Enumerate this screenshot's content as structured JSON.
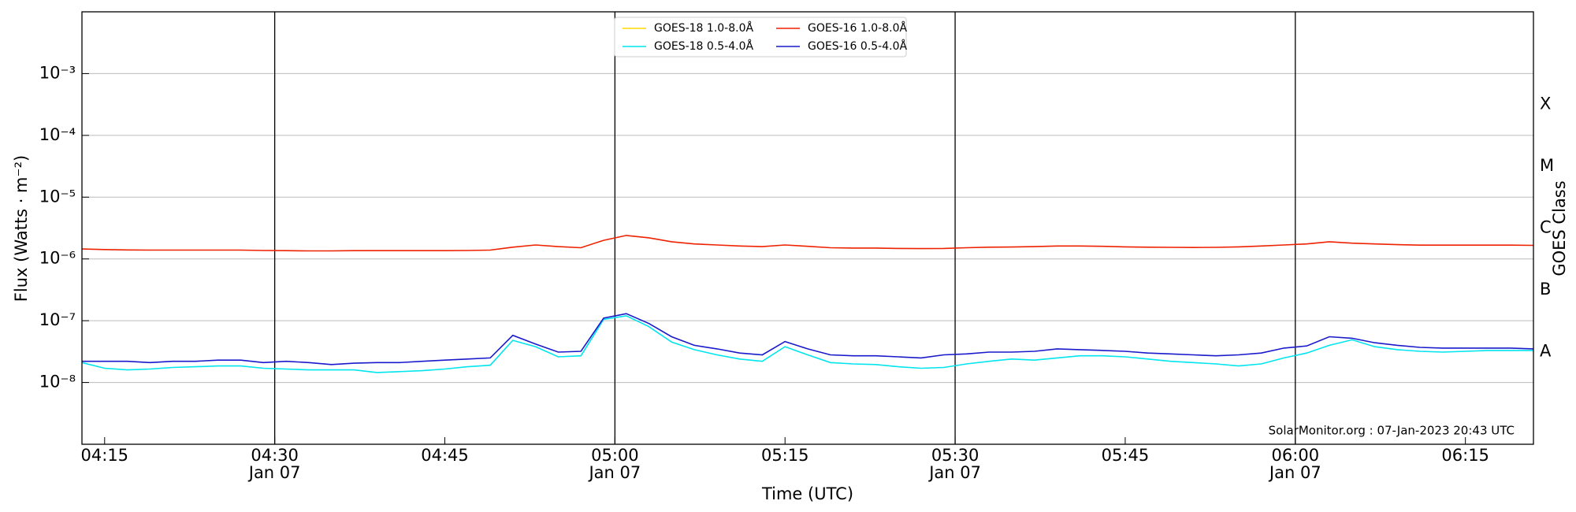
{
  "chart_data": {
    "type": "line",
    "x": [
      "04:13",
      "04:15",
      "04:17",
      "04:19",
      "04:21",
      "04:23",
      "04:25",
      "04:27",
      "04:29",
      "04:31",
      "04:33",
      "04:35",
      "04:37",
      "04:39",
      "04:41",
      "04:43",
      "04:45",
      "04:47",
      "04:49",
      "04:51",
      "04:53",
      "04:55",
      "04:57",
      "04:59",
      "05:01",
      "05:03",
      "05:05",
      "05:07",
      "05:09",
      "05:11",
      "05:13",
      "05:15",
      "05:17",
      "05:19",
      "05:21",
      "05:23",
      "05:25",
      "05:27",
      "05:29",
      "05:31",
      "05:33",
      "05:35",
      "05:37",
      "05:39",
      "05:41",
      "05:43",
      "05:45",
      "05:47",
      "05:49",
      "05:51",
      "05:53",
      "05:55",
      "05:57",
      "05:59",
      "06:01",
      "06:03",
      "06:05",
      "06:07",
      "06:09",
      "06:11",
      "06:13",
      "06:15",
      "06:17",
      "06:19",
      "06:21"
    ],
    "series": [
      {
        "name": "GOES-18 1.0-8.0Å",
        "color": "#ffd700",
        "values": [
          null,
          null,
          null,
          null,
          null,
          null,
          null,
          null,
          null,
          null,
          null,
          null,
          null,
          null,
          null,
          null,
          null,
          null,
          null,
          null,
          null,
          null,
          null,
          null,
          null,
          null,
          null,
          null,
          null,
          null,
          null,
          null,
          null,
          null,
          null,
          null,
          null,
          null,
          null,
          null,
          null,
          null,
          null,
          null,
          null,
          null,
          null,
          null,
          null,
          null,
          null,
          null,
          null,
          null,
          null,
          null,
          null,
          null,
          null,
          null,
          null,
          null,
          null,
          null,
          null
        ]
      },
      {
        "name": "GOES-18 0.5-4.0Å",
        "color": "#00e5ee",
        "values": [
          2.1e-08,
          1.7e-08,
          1.6e-08,
          1.65e-08,
          1.75e-08,
          1.8e-08,
          1.85e-08,
          1.85e-08,
          1.7e-08,
          1.65e-08,
          1.6e-08,
          1.6e-08,
          1.6e-08,
          1.45e-08,
          1.5e-08,
          1.55e-08,
          1.65e-08,
          1.8e-08,
          1.9e-08,
          4.8e-08,
          3.8e-08,
          2.6e-08,
          2.7e-08,
          1.05e-07,
          1.2e-07,
          8e-08,
          4.5e-08,
          3.4e-08,
          2.8e-08,
          2.4e-08,
          2.2e-08,
          3.8e-08,
          2.8e-08,
          2.1e-08,
          2e-08,
          1.95e-08,
          1.8e-08,
          1.7e-08,
          1.75e-08,
          2e-08,
          2.2e-08,
          2.4e-08,
          2.3e-08,
          2.5e-08,
          2.7e-08,
          2.7e-08,
          2.6e-08,
          2.4e-08,
          2.2e-08,
          2.1e-08,
          2e-08,
          1.85e-08,
          2e-08,
          2.5e-08,
          3e-08,
          4e-08,
          4.9e-08,
          3.8e-08,
          3.4e-08,
          3.2e-08,
          3.1e-08,
          3.2e-08,
          3.3e-08,
          3.3e-08,
          3.3e-08
        ]
      },
      {
        "name": "GOES-16 1.0-8.0Å",
        "color": "#ee2200",
        "values": [
          1.45e-06,
          1.42e-06,
          1.4e-06,
          1.39e-06,
          1.39e-06,
          1.39e-06,
          1.39e-06,
          1.39e-06,
          1.37e-06,
          1.36e-06,
          1.35e-06,
          1.35e-06,
          1.36e-06,
          1.36e-06,
          1.36e-06,
          1.36e-06,
          1.36e-06,
          1.37e-06,
          1.39e-06,
          1.55e-06,
          1.68e-06,
          1.58e-06,
          1.52e-06,
          2e-06,
          2.4e-06,
          2.2e-06,
          1.9e-06,
          1.75e-06,
          1.68e-06,
          1.62e-06,
          1.58e-06,
          1.68e-06,
          1.6e-06,
          1.52e-06,
          1.5e-06,
          1.5e-06,
          1.48e-06,
          1.47e-06,
          1.48e-06,
          1.52e-06,
          1.55e-06,
          1.56e-06,
          1.58e-06,
          1.62e-06,
          1.62e-06,
          1.6e-06,
          1.57e-06,
          1.55e-06,
          1.54e-06,
          1.53e-06,
          1.54e-06,
          1.57e-06,
          1.62e-06,
          1.68e-06,
          1.75e-06,
          1.9e-06,
          1.8e-06,
          1.75e-06,
          1.7e-06,
          1.67e-06,
          1.67e-06,
          1.67e-06,
          1.67e-06,
          1.67e-06,
          1.66e-06
        ]
      },
      {
        "name": "GOES-16 0.5-4.0Å",
        "color": "#1a1acc",
        "values": [
          2.2e-08,
          2.2e-08,
          2.2e-08,
          2.1e-08,
          2.2e-08,
          2.2e-08,
          2.3e-08,
          2.3e-08,
          2.1e-08,
          2.2e-08,
          2.1e-08,
          1.95e-08,
          2.05e-08,
          2.1e-08,
          2.1e-08,
          2.2e-08,
          2.3e-08,
          2.4e-08,
          2.5e-08,
          5.8e-08,
          4.2e-08,
          3.1e-08,
          3.2e-08,
          1.1e-07,
          1.3e-07,
          9e-08,
          5.5e-08,
          4e-08,
          3.5e-08,
          3e-08,
          2.8e-08,
          4.6e-08,
          3.5e-08,
          2.8e-08,
          2.7e-08,
          2.7e-08,
          2.6e-08,
          2.5e-08,
          2.8e-08,
          2.9e-08,
          3.1e-08,
          3.1e-08,
          3.2e-08,
          3.5e-08,
          3.4e-08,
          3.3e-08,
          3.2e-08,
          3e-08,
          2.9e-08,
          2.8e-08,
          2.7e-08,
          2.8e-08,
          3e-08,
          3.6e-08,
          3.9e-08,
          5.5e-08,
          5.2e-08,
          4.4e-08,
          4e-08,
          3.7e-08,
          3.6e-08,
          3.6e-08,
          3.6e-08,
          3.6e-08,
          3.5e-08
        ]
      }
    ],
    "xlabel": "Time (UTC)",
    "ylabel": "Flux (Watts · m⁻²)",
    "y2label": "GOES Class",
    "xlim": [
      "04:13",
      "06:21"
    ],
    "xticks": [
      "04:15",
      "04:30",
      "04:45",
      "05:00",
      "05:15",
      "05:30",
      "05:45",
      "06:00",
      "06:15"
    ],
    "xtick_sublabels": [
      null,
      "Jan 07",
      null,
      "Jan 07",
      null,
      "Jan 07",
      null,
      "Jan 07",
      null
    ],
    "ylim": [
      1e-09,
      0.01
    ],
    "ylog": true,
    "yticks": [
      {
        "value": 1e-08,
        "label": "10⁻⁸"
      },
      {
        "value": 1e-07,
        "label": "10⁻⁷"
      },
      {
        "value": 1e-06,
        "label": "10⁻⁶"
      },
      {
        "value": 1e-05,
        "label": "10⁻⁵"
      },
      {
        "value": 0.0001,
        "label": "10⁻⁴"
      },
      {
        "value": 0.001,
        "label": "10⁻³"
      }
    ],
    "y2lim": [
      1e-09,
      0.01
    ],
    "y2ticks": [
      {
        "value": 3.16e-08,
        "label": "A"
      },
      {
        "value": 3.16e-07,
        "label": "B"
      },
      {
        "value": 3.16e-06,
        "label": "C"
      },
      {
        "value": 3.16e-05,
        "label": "M"
      },
      {
        "value": 0.000316,
        "label": "X"
      }
    ],
    "grid": true,
    "legend": "upper center",
    "annotation": "SolarMonitor.org : 07-Jan-2023 20:43 UTC"
  }
}
